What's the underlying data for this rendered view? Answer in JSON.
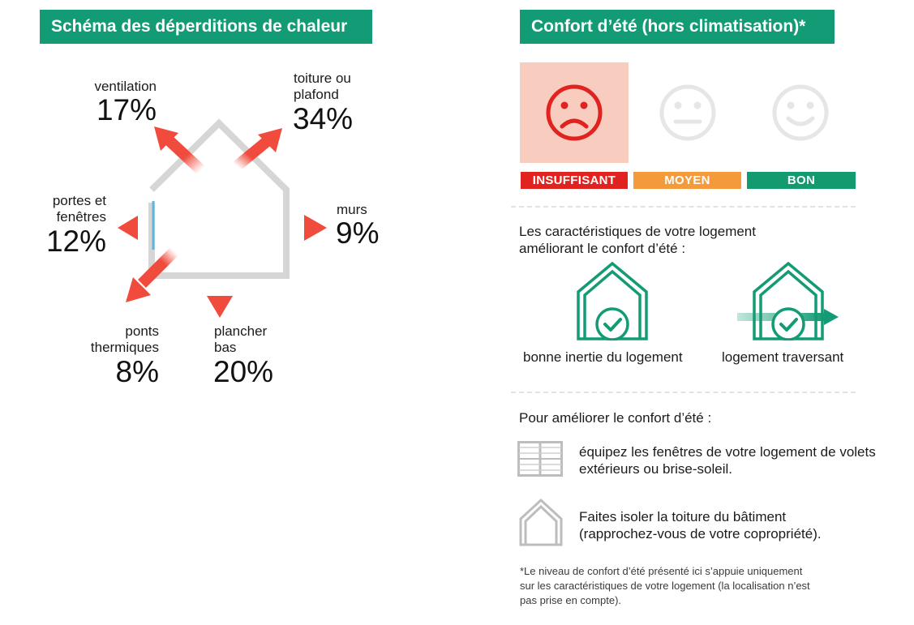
{
  "left": {
    "title": "Schéma des déperditions de chaleur",
    "items": {
      "ventilation": {
        "label": "ventilation",
        "value": "17%"
      },
      "toiture": {
        "label_1": "toiture ou",
        "label_2": "plafond",
        "value": "34%"
      },
      "portes": {
        "label_1": "portes et",
        "label_2": "fenêtres",
        "value": "12%"
      },
      "murs": {
        "label": "murs",
        "value": "9%"
      },
      "ponts": {
        "label_1": "ponts",
        "label_2": "thermiques",
        "value": "8%"
      },
      "plancher": {
        "label_1": "plancher",
        "label_2": "bas",
        "value": "20%"
      }
    }
  },
  "right": {
    "title": "Confort d’été (hors climatisation)*",
    "rating": {
      "selected": "INSUFFISANT",
      "levels": [
        {
          "label": "INSUFFISANT",
          "color": "#e1231f"
        },
        {
          "label": "MOYEN",
          "color": "#f59a3a"
        },
        {
          "label": "BON",
          "color": "#139a6f"
        }
      ]
    },
    "features_title_1": "Les caractéristiques de votre logement",
    "features_title_2": "améliorant le confort d’été :",
    "features": [
      {
        "label": "bonne inertie du logement",
        "icon": "house-check-icon"
      },
      {
        "label": "logement traversant",
        "icon": "house-through-arrow-icon"
      }
    ],
    "improve_title": "Pour améliorer le confort d’été :",
    "improvements": [
      {
        "icon": "shutters-icon",
        "line_1": "équipez les fenêtres de votre logement de volets",
        "line_2": "extérieurs ou brise-soleil."
      },
      {
        "icon": "roof-house-icon",
        "line_1": "Faites isoler la toiture du bâtiment",
        "line_2": "(rapprochez-vous de votre copropriété)."
      }
    ],
    "footnote": [
      "*Le niveau de confort d’été présenté ici s’appuie uniquement",
      "sur les caractéristiques de votre logement (la localisation n’est",
      "pas prise en compte)."
    ]
  }
}
